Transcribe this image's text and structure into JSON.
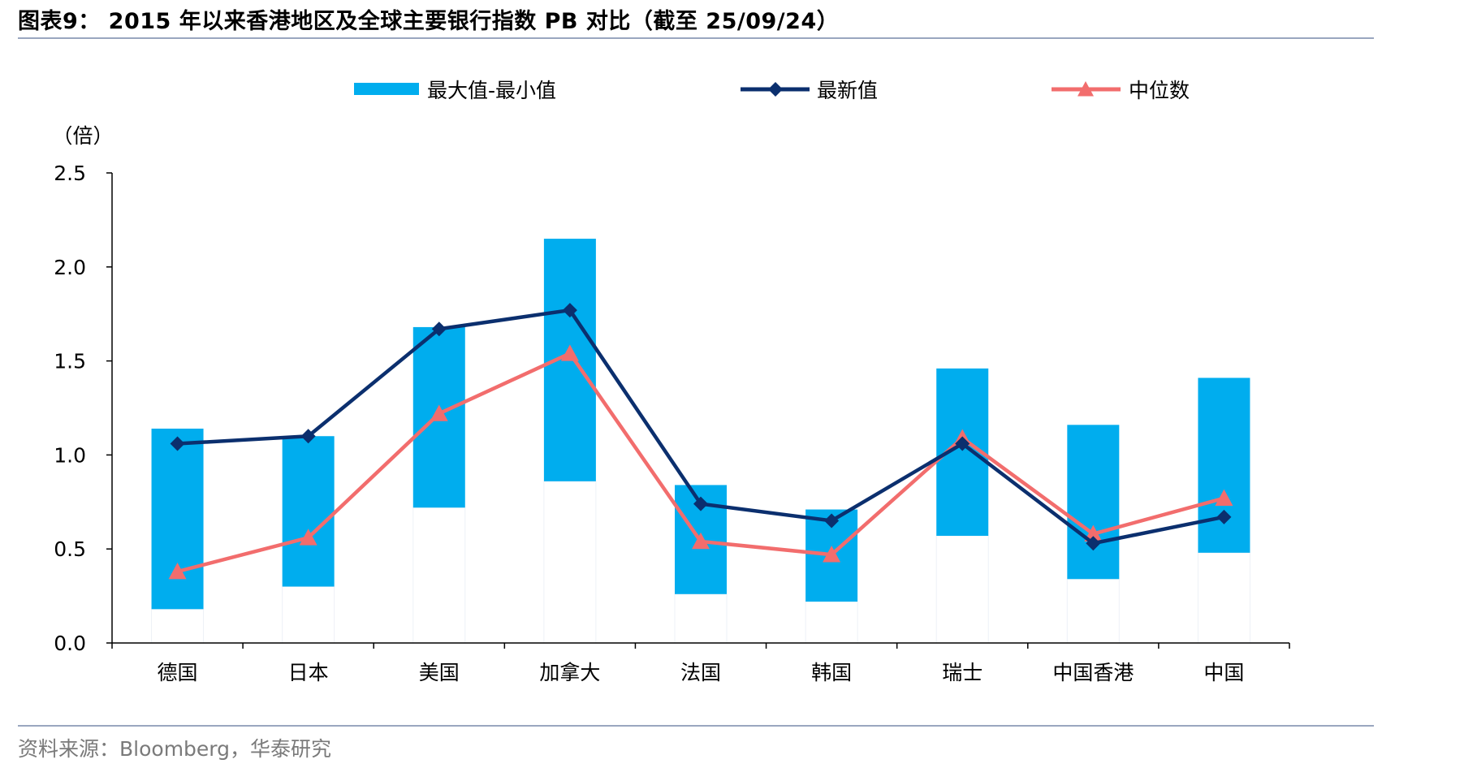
{
  "header": {
    "title": "图表9： 2015 年以来香港地区及全球主要银行指数 PB 对比（截至 25/09/24）"
  },
  "footer": {
    "source": "资料来源：Bloomberg，华泰研究"
  },
  "colors": {
    "range_bar": "#00adee",
    "latest": "#0b2f6e",
    "median": "#f26d6d",
    "axis": "#000000",
    "rule": "#9aa6bf"
  },
  "chart_data": {
    "type": "bar",
    "ylabel": "（倍）",
    "ylim": [
      0,
      2.5
    ],
    "yticks": [
      "0.0",
      "0.5",
      "1.0",
      "1.5",
      "2.0",
      "2.5"
    ],
    "grid": false,
    "legend_position": "top",
    "categories": [
      "德国",
      "日本",
      "美国",
      "加拿大",
      "法国",
      "韩国",
      "瑞士",
      "中国香港",
      "中国"
    ],
    "series": [
      {
        "name": "最大值-最小值",
        "kind": "floating-bar",
        "min": [
          0.18,
          0.3,
          0.72,
          0.86,
          0.26,
          0.22,
          0.57,
          0.34,
          0.48
        ],
        "max": [
          1.14,
          1.1,
          1.68,
          2.15,
          0.84,
          0.71,
          1.46,
          1.16,
          1.41
        ]
      },
      {
        "name": "最新值",
        "kind": "line",
        "marker": "diamond",
        "values": [
          1.06,
          1.1,
          1.67,
          1.77,
          0.74,
          0.65,
          1.06,
          0.53,
          0.67
        ]
      },
      {
        "name": "中位数",
        "kind": "line",
        "marker": "triangle",
        "values": [
          0.38,
          0.56,
          1.22,
          1.54,
          0.54,
          0.47,
          1.09,
          0.58,
          0.77
        ]
      }
    ]
  }
}
